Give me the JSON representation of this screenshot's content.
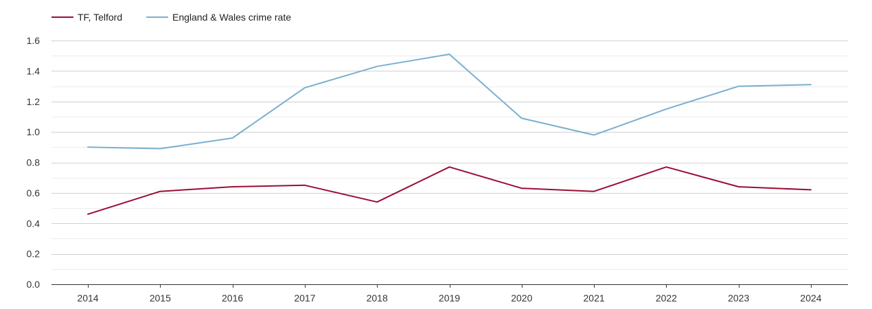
{
  "chart_data": {
    "type": "line",
    "title": "",
    "xlabel": "",
    "ylabel": "",
    "categories": [
      "2014",
      "2015",
      "2016",
      "2017",
      "2018",
      "2019",
      "2020",
      "2021",
      "2022",
      "2023",
      "2024"
    ],
    "ylim": [
      0,
      1.6
    ],
    "yticks": [
      "0.0",
      "0.2",
      "0.4",
      "0.6",
      "0.8",
      "1.0",
      "1.2",
      "1.4",
      "1.6"
    ],
    "grid": true,
    "legend_position": "top-left",
    "series": [
      {
        "name": "TF, Telford",
        "color": "#9b0d33",
        "values": [
          0.46,
          0.61,
          0.64,
          0.65,
          0.54,
          0.77,
          0.63,
          0.61,
          0.77,
          0.64,
          0.62
        ]
      },
      {
        "name": "England & Wales crime rate",
        "color": "#7aafd0",
        "values": [
          0.9,
          0.89,
          0.96,
          1.29,
          1.43,
          1.51,
          1.09,
          0.98,
          1.15,
          1.3,
          1.31
        ]
      }
    ]
  }
}
